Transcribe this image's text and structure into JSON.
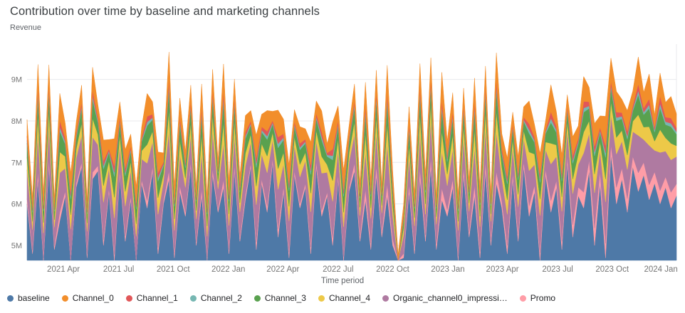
{
  "page": {
    "title": "Contribution over time by baseline and marketing channels"
  },
  "chart_data": {
    "type": "area",
    "stacked": true,
    "title": "Contribution over time by baseline and marketing channels",
    "xlabel": "Time period",
    "ylabel": "Revenue",
    "unit": "M",
    "ylim": [
      4.64,
      9.85
    ],
    "grid": "horizontal",
    "legend_position": "bottom",
    "yticks": [
      {
        "label": "5M",
        "value": 5
      },
      {
        "label": "6M",
        "value": 6
      },
      {
        "label": "7M",
        "value": 7
      },
      {
        "label": "8M",
        "value": 8
      },
      {
        "label": "9M",
        "value": 9
      }
    ],
    "xticks": [
      {
        "label": "2021 Apr",
        "pos": 0.056
      },
      {
        "label": "2021 Jul",
        "pos": 0.141
      },
      {
        "label": "2021 Oct",
        "pos": 0.225
      },
      {
        "label": "2022 Jan",
        "pos": 0.31
      },
      {
        "label": "2022 Apr",
        "pos": 0.394
      },
      {
        "label": "2022 Jul",
        "pos": 0.479
      },
      {
        "label": "2022 Oct",
        "pos": 0.563
      },
      {
        "label": "2023 Jan",
        "pos": 0.648
      },
      {
        "label": "2023 Apr",
        "pos": 0.732
      },
      {
        "label": "2023 Jul",
        "pos": 0.817
      },
      {
        "label": "2023 Oct",
        "pos": 0.901
      },
      {
        "label": "2024 Jan",
        "pos": 0.976
      }
    ],
    "stack_order": [
      "baseline",
      "Promo",
      "Organic_channel0_impressi…",
      "Channel_4",
      "Channel_3",
      "Channel_2",
      "Channel_1",
      "Channel_0"
    ],
    "series": [
      {
        "name": "baseline",
        "color": "#4e79a7",
        "values": [
          6.0,
          4.8,
          6.6,
          4.6,
          6.9,
          4.9,
          5.6,
          6.2,
          4.5,
          6.4,
          6.9,
          4.7,
          6.6,
          6.8,
          5.0,
          6.3,
          4.6,
          6.7,
          5.1,
          6.1,
          4.4,
          6.5,
          5.9,
          6.8,
          4.8,
          6.0,
          6.6,
          4.7,
          6.3,
          5.7,
          6.9,
          5.0,
          6.2,
          4.6,
          6.7,
          5.8,
          6.4,
          4.8,
          6.8,
          5.1,
          6.1,
          6.9,
          4.9,
          6.5,
          5.8,
          7.0,
          5.2,
          6.3,
          4.7,
          6.7,
          5.9,
          6.4,
          4.8,
          6.9,
          5.7,
          6.2,
          5.0,
          6.6,
          4.6,
          6.3,
          6.8,
          5.1,
          6.1,
          4.9,
          6.7,
          5.2,
          6.2,
          5.0,
          3.9,
          4.7,
          6.3,
          4.8,
          6.6,
          5.1,
          6.9,
          4.9,
          6.1,
          5.7,
          6.4,
          4.6,
          6.7,
          5.2,
          6.2,
          4.7,
          6.8,
          5.0,
          6.5,
          5.9,
          4.8,
          6.6,
          5.1,
          6.9,
          5.7,
          6.3,
          4.6,
          6.7,
          5.8,
          6.4,
          4.9,
          7.0,
          5.2,
          6.2,
          5.9,
          6.8,
          5.0,
          6.5,
          4.7,
          7.2,
          6.0,
          6.6,
          5.8,
          6.9,
          6.3,
          6.7,
          6.1,
          6.5,
          6.0,
          6.4,
          5.9,
          6.2
        ]
      },
      {
        "name": "Channel_0",
        "color": "#f28e2b",
        "values": [
          0.4,
          0.25,
          0.55,
          0.3,
          0.5,
          0.22,
          0.65,
          0.35,
          0.45,
          0.28,
          0.4,
          0.25,
          0.55,
          0.3,
          0.5,
          0.22,
          0.65,
          0.35,
          0.45,
          0.28,
          0.4,
          0.25,
          0.55,
          0.3,
          0.5,
          0.22,
          0.65,
          0.35,
          0.45,
          0.28,
          0.4,
          0.25,
          0.55,
          0.3,
          0.5,
          0.22,
          0.65,
          0.35,
          0.45,
          0.28,
          0.4,
          0.25,
          0.55,
          0.3,
          0.5,
          0.22,
          0.65,
          0.35,
          0.45,
          0.28,
          0.4,
          0.25,
          0.55,
          0.3,
          0.5,
          0.22,
          0.65,
          0.35,
          0.45,
          0.28,
          0.4,
          0.25,
          0.55,
          0.3,
          0.5,
          0.22,
          0.65,
          0.35,
          0.18,
          0.25,
          0.4,
          0.25,
          0.55,
          0.3,
          0.5,
          0.22,
          0.65,
          0.35,
          0.45,
          0.28,
          0.4,
          0.25,
          0.55,
          0.3,
          0.5,
          0.22,
          0.65,
          0.35,
          0.45,
          0.28,
          0.4,
          0.25,
          0.55,
          0.3,
          0.5,
          0.22,
          0.65,
          0.35,
          0.45,
          0.28,
          0.45,
          0.3,
          0.6,
          0.35,
          0.55,
          0.28,
          0.7,
          0.55,
          0.5,
          0.32,
          0.5,
          0.35,
          0.65,
          0.38,
          0.6,
          0.3,
          0.55,
          0.36,
          0.52,
          0.34
        ]
      },
      {
        "name": "Channel_1",
        "color": "#e15759",
        "values": [
          0.1,
          0.06,
          0.14,
          0.08,
          0.12,
          0.05,
          0.16,
          0.09,
          0.11,
          0.07,
          0.1,
          0.06,
          0.14,
          0.08,
          0.12,
          0.05,
          0.16,
          0.09,
          0.11,
          0.07,
          0.1,
          0.06,
          0.14,
          0.08,
          0.12,
          0.05,
          0.16,
          0.09,
          0.11,
          0.07,
          0.1,
          0.06,
          0.14,
          0.08,
          0.12,
          0.05,
          0.16,
          0.09,
          0.11,
          0.07,
          0.1,
          0.06,
          0.14,
          0.08,
          0.12,
          0.05,
          0.16,
          0.09,
          0.11,
          0.07,
          0.1,
          0.06,
          0.14,
          0.08,
          0.12,
          0.05,
          0.16,
          0.09,
          0.11,
          0.07,
          0.1,
          0.06,
          0.14,
          0.08,
          0.12,
          0.05,
          0.16,
          0.09,
          0.04,
          0.06,
          0.1,
          0.06,
          0.14,
          0.08,
          0.12,
          0.05,
          0.16,
          0.09,
          0.11,
          0.07,
          0.1,
          0.06,
          0.14,
          0.08,
          0.12,
          0.05,
          0.16,
          0.09,
          0.11,
          0.07,
          0.1,
          0.06,
          0.14,
          0.08,
          0.12,
          0.05,
          0.16,
          0.09,
          0.11,
          0.07,
          0.12,
          0.08,
          0.16,
          0.1,
          0.14,
          0.07,
          0.18,
          0.11,
          0.13,
          0.09,
          0.12,
          0.08,
          0.16,
          0.1,
          0.14,
          0.07,
          0.18,
          0.11,
          0.13,
          0.09
        ]
      },
      {
        "name": "Channel_2",
        "color": "#76b7b2",
        "values": [
          0.06,
          0.04,
          0.09,
          0.05,
          0.08,
          0.04,
          0.1,
          0.06,
          0.07,
          0.05,
          0.06,
          0.04,
          0.09,
          0.05,
          0.08,
          0.04,
          0.1,
          0.06,
          0.07,
          0.05,
          0.06,
          0.04,
          0.09,
          0.05,
          0.08,
          0.04,
          0.1,
          0.06,
          0.07,
          0.05,
          0.06,
          0.04,
          0.09,
          0.05,
          0.08,
          0.04,
          0.1,
          0.06,
          0.07,
          0.05,
          0.06,
          0.04,
          0.09,
          0.05,
          0.08,
          0.04,
          0.1,
          0.06,
          0.07,
          0.05,
          0.06,
          0.04,
          0.09,
          0.05,
          0.08,
          0.04,
          0.1,
          0.06,
          0.07,
          0.05,
          0.06,
          0.04,
          0.09,
          0.05,
          0.08,
          0.04,
          0.1,
          0.06,
          0.03,
          0.04,
          0.06,
          0.04,
          0.09,
          0.05,
          0.08,
          0.04,
          0.1,
          0.06,
          0.07,
          0.05,
          0.06,
          0.04,
          0.09,
          0.05,
          0.08,
          0.04,
          0.1,
          0.06,
          0.07,
          0.05,
          0.06,
          0.04,
          0.09,
          0.05,
          0.08,
          0.04,
          0.1,
          0.06,
          0.07,
          0.05,
          0.07,
          0.05,
          0.1,
          0.06,
          0.09,
          0.05,
          0.11,
          0.07,
          0.08,
          0.06,
          0.07,
          0.05,
          0.1,
          0.06,
          0.09,
          0.05,
          0.11,
          0.07,
          0.08,
          0.06
        ]
      },
      {
        "name": "Channel_3",
        "color": "#59a14f",
        "values": [
          0.35,
          0.22,
          0.45,
          0.28,
          0.4,
          0.2,
          0.5,
          0.3,
          0.38,
          0.25,
          0.35,
          0.22,
          0.45,
          0.28,
          0.4,
          0.2,
          0.5,
          0.3,
          0.38,
          0.25,
          0.35,
          0.22,
          0.45,
          0.28,
          0.4,
          0.2,
          0.5,
          0.3,
          0.38,
          0.25,
          0.35,
          0.22,
          0.45,
          0.28,
          0.4,
          0.2,
          0.5,
          0.3,
          0.38,
          0.25,
          0.35,
          0.22,
          0.45,
          0.28,
          0.4,
          0.2,
          0.5,
          0.3,
          0.38,
          0.25,
          0.35,
          0.22,
          0.45,
          0.28,
          0.4,
          0.2,
          0.5,
          0.3,
          0.38,
          0.25,
          0.35,
          0.22,
          0.45,
          0.28,
          0.4,
          0.2,
          0.5,
          0.3,
          0.15,
          0.2,
          0.35,
          0.22,
          0.45,
          0.28,
          0.4,
          0.2,
          0.5,
          0.3,
          0.38,
          0.25,
          0.35,
          0.22,
          0.45,
          0.28,
          0.4,
          0.2,
          0.5,
          0.3,
          0.38,
          0.25,
          0.35,
          0.22,
          0.45,
          0.28,
          0.4,
          0.2,
          0.5,
          0.3,
          0.38,
          0.25,
          0.38,
          0.25,
          0.48,
          0.3,
          0.44,
          0.22,
          0.52,
          0.32,
          0.4,
          0.28,
          0.38,
          0.25,
          0.48,
          0.3,
          0.44,
          0.22,
          0.52,
          0.32,
          0.4,
          0.28
        ]
      },
      {
        "name": "Channel_4",
        "color": "#edc948",
        "values": [
          0.3,
          0.2,
          0.45,
          0.25,
          0.4,
          0.18,
          0.5,
          0.28,
          0.35,
          0.22,
          0.3,
          0.2,
          0.45,
          0.25,
          0.4,
          0.18,
          0.5,
          0.28,
          0.35,
          0.22,
          0.3,
          0.2,
          0.45,
          0.25,
          0.4,
          0.18,
          0.5,
          0.28,
          0.35,
          0.22,
          0.3,
          0.2,
          0.45,
          0.25,
          0.4,
          0.18,
          0.5,
          0.28,
          0.35,
          0.22,
          0.3,
          0.2,
          0.45,
          0.25,
          0.4,
          0.18,
          0.5,
          0.28,
          0.35,
          0.22,
          0.3,
          0.2,
          0.45,
          0.25,
          0.4,
          0.18,
          0.5,
          0.28,
          0.35,
          0.22,
          0.3,
          0.2,
          0.45,
          0.25,
          0.4,
          0.18,
          0.5,
          0.28,
          0.12,
          0.18,
          0.3,
          0.2,
          0.45,
          0.25,
          0.4,
          0.18,
          0.5,
          0.28,
          0.35,
          0.22,
          0.3,
          0.2,
          0.45,
          0.25,
          0.4,
          0.18,
          0.5,
          0.28,
          0.35,
          0.22,
          0.3,
          0.2,
          0.45,
          0.25,
          0.4,
          0.18,
          0.5,
          0.28,
          0.35,
          0.22,
          0.35,
          0.25,
          0.5,
          0.3,
          0.45,
          0.22,
          0.55,
          0.32,
          0.4,
          0.26,
          0.35,
          0.25,
          0.5,
          0.3,
          0.45,
          0.22,
          0.55,
          0.32,
          0.4,
          0.26
        ]
      },
      {
        "name": "Organic_channel0_impressi…",
        "color": "#af7aa1",
        "values": [
          0.7,
          0.5,
          0.9,
          0.6,
          0.8,
          0.45,
          0.95,
          0.55,
          0.75,
          0.6,
          0.65,
          0.55,
          0.85,
          0.5,
          0.9,
          0.48,
          0.88,
          0.58,
          0.72,
          0.62,
          0.7,
          0.5,
          0.9,
          0.6,
          0.8,
          0.45,
          0.95,
          0.55,
          0.75,
          0.6,
          0.65,
          0.55,
          0.85,
          0.5,
          0.9,
          0.48,
          0.88,
          0.58,
          0.72,
          0.62,
          0.7,
          0.5,
          0.9,
          0.6,
          0.8,
          0.45,
          0.95,
          0.55,
          0.75,
          0.6,
          0.65,
          0.55,
          0.85,
          0.5,
          0.9,
          0.48,
          0.88,
          0.58,
          0.72,
          0.62,
          0.7,
          0.5,
          0.9,
          0.6,
          0.8,
          0.45,
          0.95,
          0.55,
          0.3,
          0.45,
          0.65,
          0.55,
          0.85,
          0.5,
          0.9,
          0.48,
          0.88,
          0.58,
          0.72,
          0.62,
          0.7,
          0.5,
          0.9,
          0.6,
          0.8,
          0.45,
          0.95,
          0.55,
          0.75,
          0.6,
          0.65,
          0.55,
          0.85,
          0.5,
          0.9,
          0.48,
          0.88,
          0.58,
          0.72,
          0.62,
          0.75,
          0.55,
          0.95,
          0.65,
          0.85,
          0.5,
          1.0,
          0.72,
          0.8,
          0.65,
          0.7,
          0.6,
          0.9,
          0.55,
          0.95,
          0.52,
          0.92,
          0.62,
          0.78,
          0.66
        ]
      },
      {
        "name": "Promo",
        "color": "#ff9da7",
        "values": [
          0.12,
          0.08,
          0.18,
          0.1,
          0.15,
          0.09,
          0.2,
          0.11,
          0.14,
          0.1,
          0.1,
          0.09,
          0.16,
          0.12,
          0.14,
          0.08,
          0.18,
          0.1,
          0.13,
          0.09,
          0.12,
          0.08,
          0.18,
          0.1,
          0.15,
          0.09,
          0.2,
          0.11,
          0.14,
          0.1,
          0.1,
          0.09,
          0.16,
          0.12,
          0.14,
          0.08,
          0.18,
          0.1,
          0.13,
          0.09,
          0.12,
          0.08,
          0.18,
          0.1,
          0.15,
          0.09,
          0.2,
          0.11,
          0.14,
          0.1,
          0.1,
          0.09,
          0.16,
          0.12,
          0.14,
          0.08,
          0.18,
          0.1,
          0.13,
          0.09,
          0.18,
          0.12,
          0.25,
          0.15,
          0.22,
          0.13,
          0.28,
          0.16,
          0.06,
          0.1,
          0.18,
          0.12,
          0.25,
          0.15,
          0.22,
          0.13,
          0.28,
          0.16,
          0.2,
          0.14,
          0.18,
          0.12,
          0.25,
          0.15,
          0.22,
          0.13,
          0.28,
          0.16,
          0.2,
          0.14,
          0.18,
          0.12,
          0.25,
          0.15,
          0.22,
          0.13,
          0.28,
          0.16,
          0.2,
          0.14,
          0.3,
          0.2,
          0.38,
          0.25,
          0.42,
          0.28,
          0.35,
          0.22,
          0.4,
          0.26,
          0.33,
          0.24,
          0.45,
          0.3,
          0.36,
          0.27,
          0.32,
          0.25,
          0.38,
          0.28
        ]
      }
    ]
  }
}
